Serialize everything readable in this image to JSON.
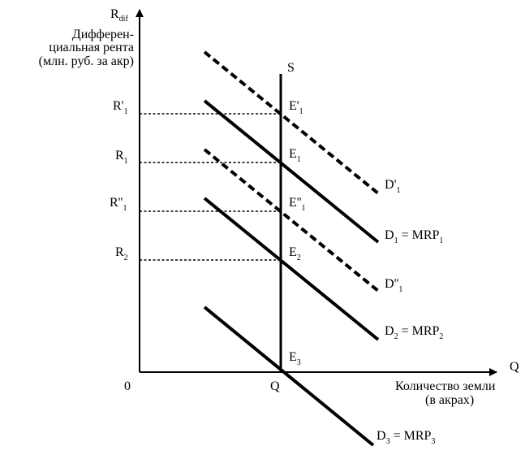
{
  "axes": {
    "y_symbol": "R",
    "y_symbol_sub": "dif",
    "y_title_lines": [
      "Дифферен-",
      "циальная рента",
      "(млн. руб. за акр)"
    ],
    "x_symbol": "Q",
    "x_title_lines": [
      "Количество земли",
      "(в акрах)"
    ],
    "origin": "0",
    "q_tick": "Q"
  },
  "supply_label": "S",
  "rent_levels": [
    {
      "id": "r1-prime",
      "main": "R",
      "sub": "1",
      "sup": "'"
    },
    {
      "id": "r1",
      "main": "R",
      "sub": "1",
      "sup": ""
    },
    {
      "id": "r1-double",
      "main": "R",
      "sub": "1",
      "sup": "''"
    },
    {
      "id": "r2",
      "main": "R",
      "sub": "2",
      "sup": ""
    }
  ],
  "equilibria": [
    {
      "id": "e1-prime",
      "main": "E",
      "sub": "1",
      "sup": "'"
    },
    {
      "id": "e1",
      "main": "E",
      "sub": "1",
      "sup": ""
    },
    {
      "id": "e1-double",
      "main": "E",
      "sub": "1",
      "sup": "''"
    },
    {
      "id": "e2",
      "main": "E",
      "sub": "2",
      "sup": ""
    },
    {
      "id": "e3",
      "main": "E",
      "sub": "3",
      "sup": ""
    }
  ],
  "demand_curves": [
    {
      "id": "d1-prime",
      "style": "dashed",
      "main": "D",
      "sub": "1",
      "sup": "'",
      "suffix": "",
      "suffix_sub": ""
    },
    {
      "id": "d1",
      "style": "solid",
      "main": "D",
      "sub": "1",
      "sup": "",
      "suffix": "= MRP",
      "suffix_sub": "1"
    },
    {
      "id": "d1-double",
      "style": "dashed",
      "main": "D",
      "sub": "1",
      "sup": "''",
      "suffix": "",
      "suffix_sub": ""
    },
    {
      "id": "d2",
      "style": "solid",
      "main": "D",
      "sub": "2",
      "sup": "",
      "suffix": "= MRP",
      "suffix_sub": "2"
    },
    {
      "id": "d3",
      "style": "solid",
      "main": "D",
      "sub": "3",
      "sup": "",
      "suffix": "= MRP",
      "suffix_sub": "3"
    }
  ]
}
